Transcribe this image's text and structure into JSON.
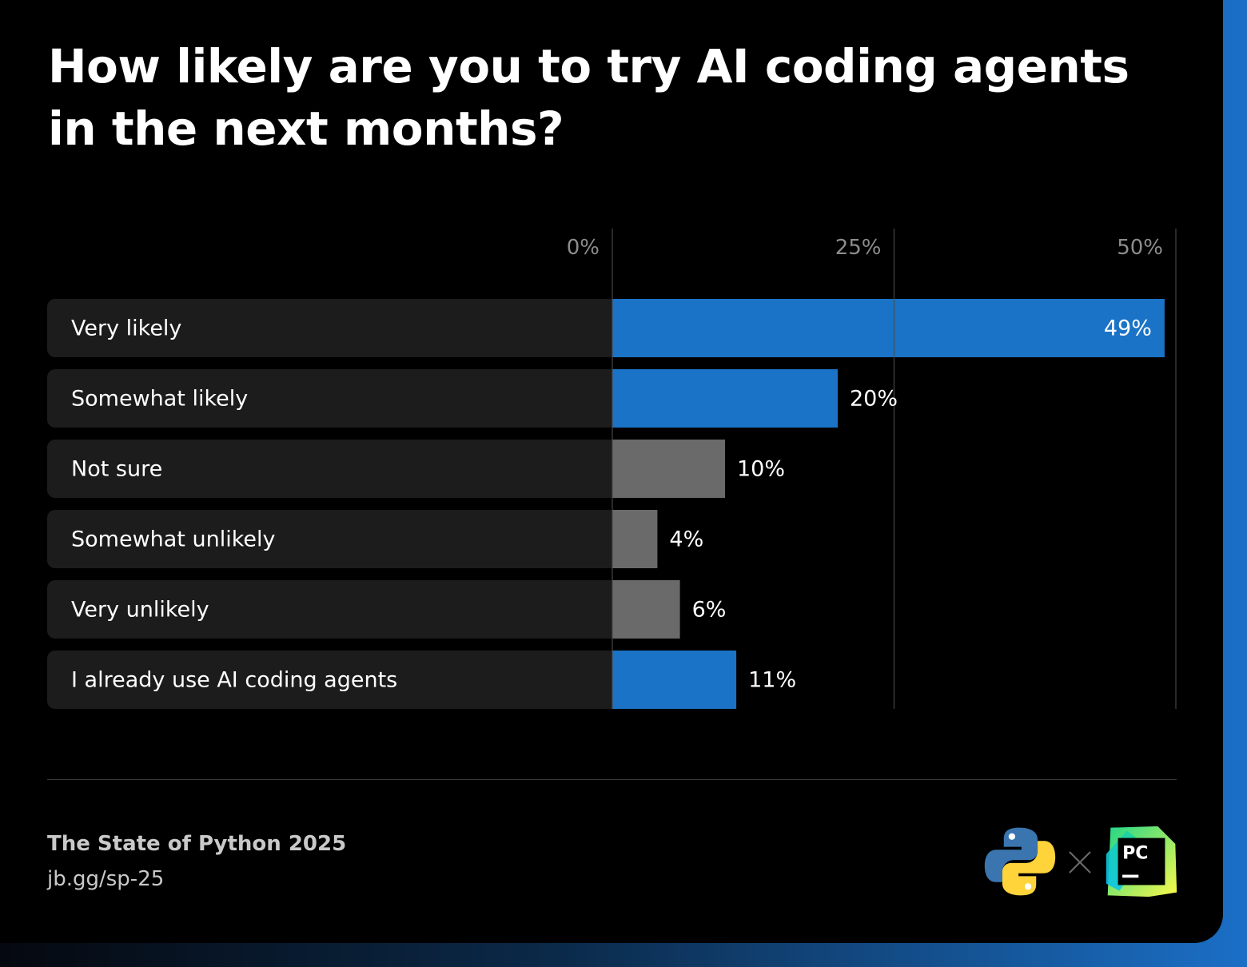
{
  "title_lines": [
    "How likely are you to try AI coding agents",
    "in the next months?"
  ],
  "chart_data": {
    "type": "bar",
    "orientation": "horizontal",
    "title": "How likely are you to try AI coding agents in the next months?",
    "categories": [
      "Very likely",
      "Somewhat likely",
      "Not sure",
      "Somewhat unlikely",
      "Very unlikely",
      "I already use AI coding agents"
    ],
    "values": [
      49,
      20,
      10,
      4,
      6,
      11
    ],
    "value_labels": [
      "49%",
      "20%",
      "10%",
      "4%",
      "6%",
      "11%"
    ],
    "bar_colors": [
      "#1a73c6",
      "#1a73c6",
      "#6a6a6a",
      "#6a6a6a",
      "#6a6a6a",
      "#1a73c6"
    ],
    "x_ticks": [
      0,
      25,
      50
    ],
    "x_tick_labels": [
      "0%",
      "25%",
      "50%"
    ],
    "xlim": [
      0,
      50
    ],
    "grid": true,
    "legend": "none"
  },
  "colors": {
    "background": "#000000",
    "row_background": "#1c1c1c",
    "accent": "#1a73c6",
    "neutral_bar": "#6a6a6a",
    "grid": "#4a4a4a",
    "tick_text": "#8c8c8c",
    "text": "#ffffff"
  },
  "footer": {
    "title": "The State of Python 2025",
    "link": "jb.gg/sp-25"
  },
  "logos": {
    "python": "python-logo",
    "separator": "times-icon",
    "pycharm": "pycharm-logo",
    "pycharm_text": "PC"
  }
}
